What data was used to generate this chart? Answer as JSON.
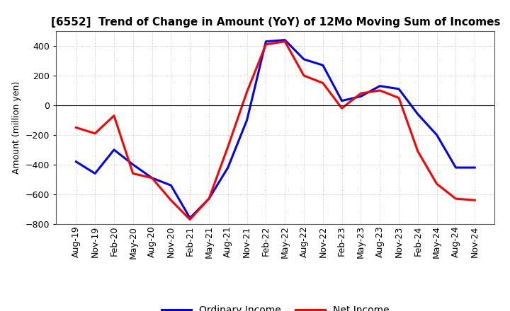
{
  "title": "[6552]  Trend of Change in Amount (YoY) of 12Mo Moving Sum of Incomes",
  "ylabel": "Amount (million yen)",
  "background_color": "#ffffff",
  "plot_background_color": "#ffffff",
  "grid_color": "#888888",
  "line_color_ordinary": "#0000ff",
  "line_color_net": "#ff0000",
  "x_labels": [
    "Aug-19",
    "Nov-19",
    "Feb-20",
    "May-20",
    "Aug-20",
    "Nov-20",
    "Feb-21",
    "May-21",
    "Aug-21",
    "Nov-21",
    "Feb-22",
    "May-22",
    "Aug-22",
    "Nov-22",
    "Feb-23",
    "May-23",
    "Aug-23",
    "Nov-23",
    "Feb-24",
    "May-24",
    "Aug-24",
    "Nov-24"
  ],
  "ordinary_income": [
    -380,
    -460,
    -300,
    -400,
    -490,
    -540,
    -760,
    -630,
    -420,
    -100,
    430,
    440,
    310,
    270,
    30,
    60,
    130,
    110,
    -60,
    -200,
    -420,
    -420
  ],
  "net_income": [
    -150,
    -190,
    -70,
    -460,
    -490,
    -640,
    -770,
    -630,
    -280,
    90,
    410,
    430,
    200,
    150,
    -20,
    80,
    100,
    50,
    -310,
    -530,
    -630,
    -640
  ],
  "ylim": [
    -800,
    500
  ],
  "yticks": [
    -800,
    -600,
    -400,
    -200,
    0,
    200,
    400
  ],
  "legend_ordinary": "Ordinary Income",
  "legend_net": "Net Income",
  "linewidth": 2.2,
  "title_fontsize": 11,
  "ylabel_fontsize": 9,
  "tick_fontsize": 9,
  "legend_fontsize": 10
}
